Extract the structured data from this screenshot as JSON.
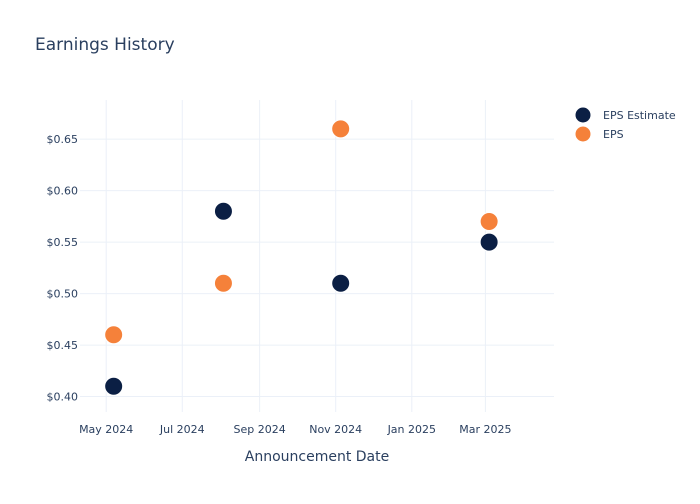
{
  "chart_data": {
    "type": "scatter",
    "title": "Earnings History",
    "xlabel": "Announcement Date",
    "ylabel": "",
    "x_axis_type": "date",
    "xlim": [
      "2024-04-10",
      "2025-04-25"
    ],
    "ylim": [
      0.385,
      0.688
    ],
    "grid": true,
    "legend_position": "top-right",
    "x_ticks": [
      {
        "date": "2024-05-01",
        "label": "May 2024"
      },
      {
        "date": "2024-07-01",
        "label": "Jul 2024"
      },
      {
        "date": "2024-09-01",
        "label": "Sep 2024"
      },
      {
        "date": "2024-11-01",
        "label": "Nov 2024"
      },
      {
        "date": "2025-01-01",
        "label": "Jan 2025"
      },
      {
        "date": "2025-03-01",
        "label": "Mar 2025"
      }
    ],
    "y_ticks": [
      {
        "value": 0.4,
        "label": "$0.40"
      },
      {
        "value": 0.45,
        "label": "$0.45"
      },
      {
        "value": 0.5,
        "label": "$0.50"
      },
      {
        "value": 0.55,
        "label": "$0.55"
      },
      {
        "value": 0.6,
        "label": "$0.60"
      },
      {
        "value": 0.65,
        "label": "$0.65"
      }
    ],
    "series": [
      {
        "name": "EPS Estimate",
        "color": "#0b1f44",
        "points": [
          {
            "x": "2024-05-07",
            "y": 0.41
          },
          {
            "x": "2024-08-03",
            "y": 0.58
          },
          {
            "x": "2024-11-05",
            "y": 0.51
          },
          {
            "x": "2025-03-04",
            "y": 0.55
          }
        ]
      },
      {
        "name": "EPS",
        "color": "#f5813a",
        "points": [
          {
            "x": "2024-05-07",
            "y": 0.46
          },
          {
            "x": "2024-08-03",
            "y": 0.51
          },
          {
            "x": "2024-11-05",
            "y": 0.66
          },
          {
            "x": "2025-03-04",
            "y": 0.57
          }
        ]
      }
    ]
  }
}
